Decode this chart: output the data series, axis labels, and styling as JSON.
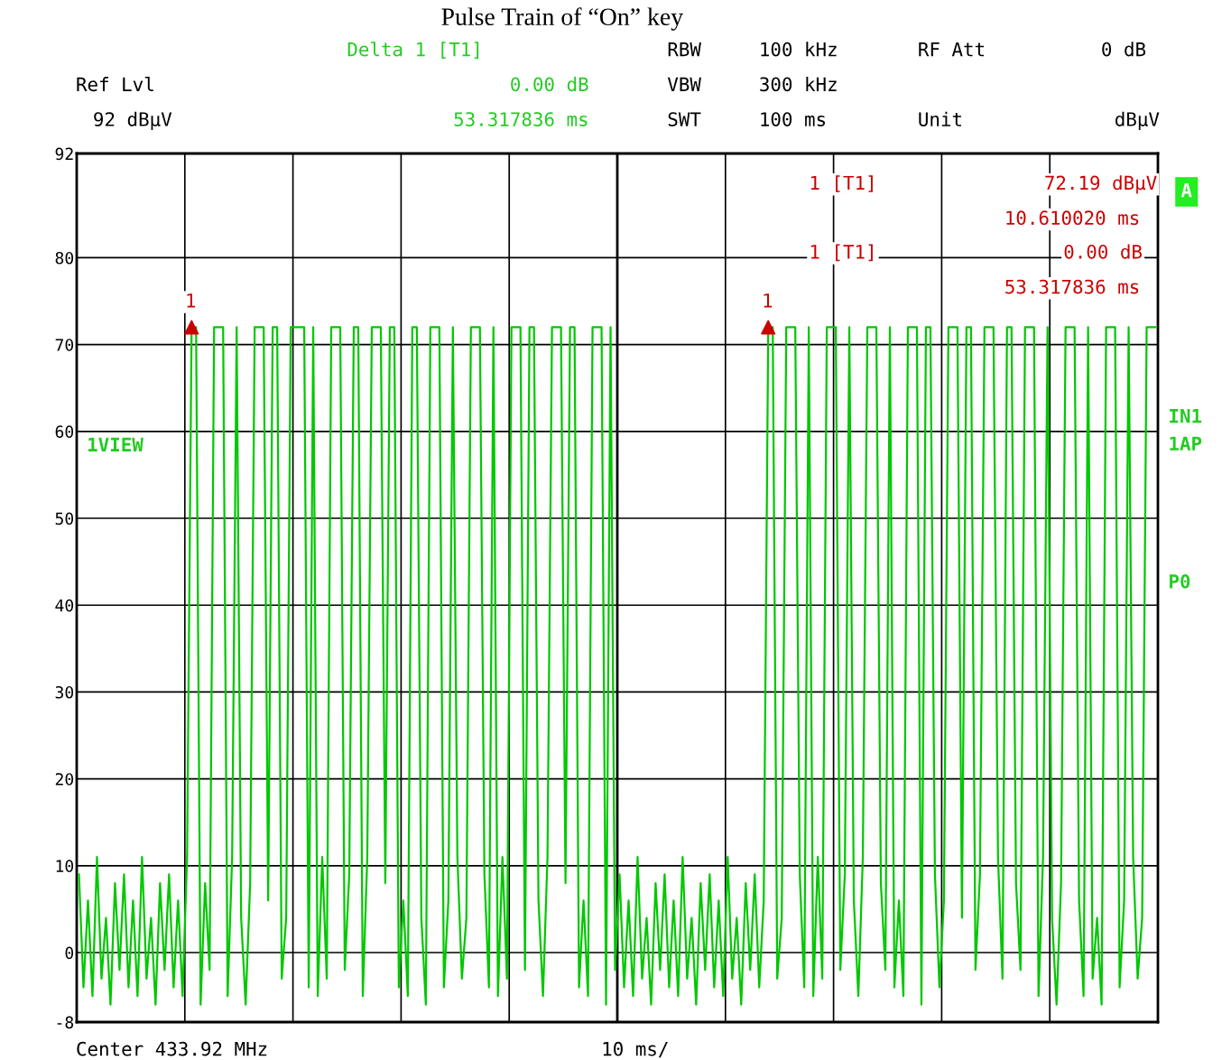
{
  "chart_data": {
    "type": "line",
    "title": "Pulse Train of “On” key",
    "categories": [
      null,
      null,
      null,
      null,
      null,
      null,
      null,
      null,
      null,
      null,
      null,
      null,
      null,
      null,
      null,
      null,
      null,
      null,
      null,
      null,
      null,
      null,
      null,
      null,
      null,
      null,
      null,
      null,
      null,
      null,
      null,
      null,
      null,
      null,
      null,
      null,
      null,
      null,
      null,
      null,
      null,
      null,
      null,
      null,
      null,
      null,
      null,
      null,
      null,
      null,
      null,
      null,
      null,
      null,
      null,
      null,
      null,
      null,
      null,
      null,
      null,
      null,
      null,
      null,
      null,
      null,
      null,
      null,
      null,
      null,
      null,
      null,
      null,
      null,
      null,
      null,
      null,
      null,
      null,
      null,
      null,
      null,
      null,
      null,
      null,
      null,
      null,
      null,
      null,
      null,
      null,
      null,
      null,
      null,
      null,
      null,
      null,
      null,
      null,
      null,
      null,
      null,
      null,
      null,
      null,
      null,
      null,
      null,
      null,
      null,
      null,
      null,
      null,
      null,
      null,
      null,
      null,
      null,
      null,
      null,
      null,
      null,
      null,
      null,
      null,
      null,
      null,
      null,
      null,
      null,
      null,
      null,
      null,
      null,
      null,
      null,
      null,
      null,
      null,
      null,
      null,
      null,
      null,
      null,
      null,
      null,
      null,
      null,
      null,
      null,
      null,
      null,
      null,
      null,
      null,
      null,
      null,
      null,
      null,
      null,
      null,
      null,
      null,
      null,
      null,
      null,
      null,
      null,
      null,
      null,
      null,
      null,
      null,
      null,
      null,
      null,
      null,
      null,
      null,
      null,
      null,
      null,
      null,
      null,
      null,
      null,
      null,
      null,
      null,
      null,
      null,
      null,
      null,
      null,
      null,
      null,
      null,
      null,
      null,
      null,
      null,
      null,
      null,
      null,
      null,
      null,
      null,
      null,
      null,
      null,
      null,
      null,
      null,
      null,
      null,
      null,
      null,
      null,
      null,
      null,
      null,
      null,
      null,
      null,
      null,
      null,
      null,
      null,
      null,
      null,
      null,
      null,
      null,
      null,
      null,
      null,
      null,
      null,
      null,
      null
    ],
    "series": [
      {
        "color": "#00c800",
        "values": [
          9,
          -4,
          6,
          -5,
          11,
          -3,
          4,
          -6,
          8,
          -2,
          9,
          -4,
          6,
          -5,
          11,
          -3,
          4,
          -6,
          8,
          -2,
          9,
          -4,
          6,
          -5,
          11,
          72,
          72,
          -6,
          8,
          -2,
          72,
          72,
          72,
          -5,
          11,
          72,
          4,
          -6,
          8,
          72,
          72,
          72,
          6,
          72,
          72,
          -3,
          4,
          72,
          72,
          72,
          72,
          -4,
          72,
          -5,
          11,
          -3,
          72,
          72,
          72,
          -2,
          9,
          72,
          72,
          -5,
          11,
          72,
          72,
          72,
          8,
          72,
          72,
          -4,
          6,
          -5,
          72,
          72,
          4,
          -6,
          72,
          72,
          72,
          -4,
          6,
          72,
          11,
          -3,
          4,
          72,
          72,
          72,
          9,
          -4,
          72,
          -5,
          11,
          -3,
          72,
          72,
          72,
          -2,
          72,
          72,
          6,
          -5,
          11,
          72,
          72,
          72,
          8,
          72,
          72,
          -4,
          6,
          -5,
          72,
          72,
          72,
          -6,
          72,
          -2,
          9,
          -4,
          6,
          -5,
          11,
          -3,
          4,
          -6,
          8,
          -2,
          9,
          -4,
          6,
          -5,
          11,
          -3,
          4,
          -6,
          8,
          -2,
          9,
          -4,
          6,
          -5,
          11,
          -3,
          4,
          -6,
          8,
          -2,
          9,
          -4,
          6,
          72,
          72,
          -3,
          4,
          72,
          72,
          72,
          9,
          -4,
          72,
          -5,
          11,
          -3,
          72,
          72,
          72,
          -2,
          9,
          72,
          6,
          -5,
          11,
          72,
          72,
          72,
          8,
          -2,
          72,
          -4,
          6,
          -5,
          72,
          72,
          72,
          -6,
          72,
          72,
          9,
          -4,
          6,
          72,
          72,
          72,
          4,
          72,
          72,
          -2,
          9,
          72,
          72,
          72,
          11,
          -3,
          72,
          72,
          8,
          -2,
          72,
          72,
          72,
          -5,
          11,
          72,
          4,
          -6,
          8,
          72,
          72,
          72,
          6,
          -5,
          72,
          -3,
          4,
          -6,
          72,
          72,
          72,
          -4,
          6,
          72,
          11,
          -3,
          4,
          72,
          72,
          72
        ]
      },
      {
        "type": "scatter",
        "color": "#cc0000",
        "marker": "triangle",
        "values": [
          null,
          null,
          null,
          null,
          null,
          null,
          null,
          null,
          null,
          null,
          null,
          null,
          null,
          null,
          null,
          null,
          null,
          null,
          null,
          null,
          null,
          null,
          null,
          null,
          null,
          72,
          null,
          null,
          null,
          null,
          null,
          null,
          null,
          null,
          null,
          null,
          null,
          null,
          null,
          null,
          null,
          null,
          null,
          null,
          null,
          null,
          null,
          null,
          null,
          null,
          null,
          null,
          null,
          null,
          null,
          null,
          null,
          null,
          null,
          null,
          null,
          null,
          null,
          null,
          null,
          null,
          null,
          null,
          null,
          null,
          null,
          null,
          null,
          null,
          null,
          null,
          null,
          null,
          null,
          null,
          null,
          null,
          null,
          null,
          null,
          null,
          null,
          null,
          null,
          null,
          null,
          null,
          null,
          null,
          null,
          null,
          null,
          null,
          null,
          null,
          null,
          null,
          null,
          null,
          null,
          null,
          null,
          null,
          null,
          null,
          null,
          null,
          null,
          null,
          null,
          null,
          null,
          null,
          null,
          null,
          null,
          null,
          null,
          null,
          null,
          null,
          null,
          null,
          null,
          null,
          null,
          null,
          null,
          null,
          null,
          null,
          null,
          null,
          null,
          null,
          null,
          null,
          null,
          null,
          null,
          null,
          null,
          null,
          null,
          null,
          null,
          null,
          null,
          72,
          null,
          null,
          null,
          null,
          null,
          null,
          null,
          null,
          null,
          null,
          null,
          null,
          null,
          null,
          null,
          null,
          null,
          null,
          null,
          null,
          null,
          null,
          null,
          null,
          null,
          null,
          null,
          null,
          null,
          null,
          null,
          null,
          null,
          null,
          null,
          null,
          null,
          null,
          null,
          null,
          null,
          null,
          null,
          null,
          null,
          null,
          null,
          null,
          null,
          null,
          null,
          null,
          null,
          null,
          null,
          null,
          null,
          null,
          null,
          null,
          null,
          null,
          null,
          null,
          null,
          null,
          null,
          null,
          null,
          null,
          null,
          null,
          null,
          null,
          null,
          null,
          null,
          null,
          null,
          null,
          null,
          null,
          null,
          null,
          null,
          null
        ]
      }
    ],
    "ylim": [
      -8,
      92
    ],
    "yticks": [
      -8,
      0,
      10,
      20,
      30,
      40,
      50,
      60,
      70,
      80,
      92
    ],
    "grid": true,
    "legend": false,
    "annotations": [
      "Delta 1 [T1]",
      "0.00 dB",
      "53.317836 ms",
      "Ref Lvl",
      "92 dBµV",
      "RBW",
      "100 kHz",
      "RF Att",
      "0 dB",
      "VBW",
      "300 kHz",
      "SWT",
      "100 ms",
      "Unit",
      "dBµV",
      "1 [T1]",
      "72.19 dBµV",
      "10.610020 ms",
      "1 [T1]",
      "0.00 dB",
      "53.317836 ms",
      "1",
      "1",
      "1VIEW",
      "A",
      "IN1",
      "1AP",
      "P0",
      "Center 433.92 MHz",
      "10 ms/"
    ]
  }
}
